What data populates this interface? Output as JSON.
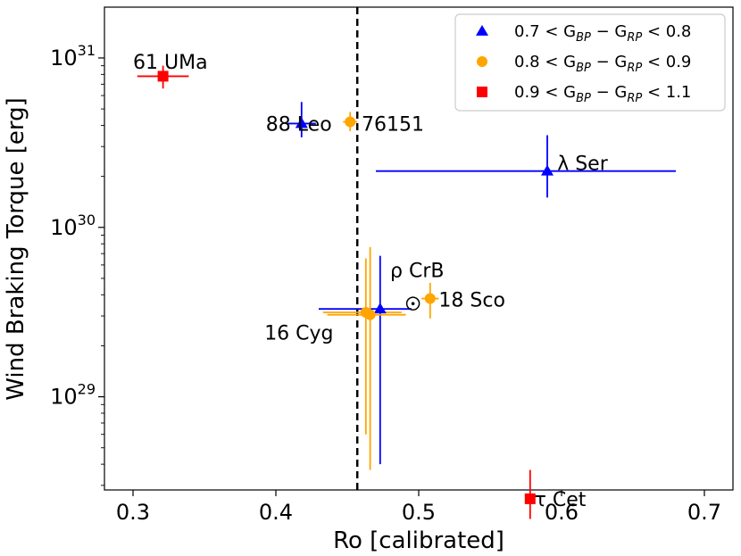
{
  "chart_data": {
    "type": "scatter",
    "xlabel": "Ro [calibrated]",
    "ylabel": "Wind Braking Torque [erg]",
    "xlim": [
      0.28,
      0.72
    ],
    "ylim_log10": [
      28.45,
      31.3
    ],
    "yscale": "log",
    "x_ticks": [
      {
        "value": 0.3,
        "label": "0.3"
      },
      {
        "value": 0.4,
        "label": "0.4"
      },
      {
        "value": 0.5,
        "label": "0.5"
      },
      {
        "value": 0.6,
        "label": "0.6"
      },
      {
        "value": 0.7,
        "label": "0.7"
      }
    ],
    "y_ticks": [
      {
        "exp": 29,
        "base": "10",
        "sup": "29"
      },
      {
        "exp": 30,
        "base": "10",
        "sup": "30"
      },
      {
        "exp": 31,
        "base": "10",
        "sup": "31"
      }
    ],
    "vline": {
      "x": 0.457,
      "style": "dashed",
      "color": "#000000"
    },
    "legend": {
      "position": "top-right",
      "entries": [
        {
          "series": "blue",
          "label": "0.7 < G_BP − G_RP < 0.8",
          "text_main": "0.7 < G",
          "sub1": "BP",
          "mid": " − G",
          "sub2": "RP",
          "tail": " < 0.8"
        },
        {
          "series": "orange",
          "label": "0.8 < G_BP − G_RP < 0.9",
          "text_main": "0.8 < G",
          "sub1": "BP",
          "mid": " − G",
          "sub2": "RP",
          "tail": " < 0.9"
        },
        {
          "series": "red",
          "label": "0.9 < G_BP − G_RP < 1.1",
          "text_main": "0.9 < G",
          "sub1": "BP",
          "mid": " − G",
          "sub2": "RP",
          "tail": " < 1.1"
        }
      ]
    },
    "series": [
      {
        "name": "blue",
        "color": "#0000ff",
        "marker": "triangle",
        "points": [
          {
            "star": "88 Leo",
            "x": 0.418,
            "y": 4.1e+30,
            "xerr": [
              0.01,
              0.01
            ],
            "yerr": [
              7e+29,
              1.4e+30
            ]
          },
          {
            "star": "lambda Ser",
            "x": 0.59,
            "y": 2.15e+30,
            "xerr": [
              0.12,
              0.09
            ],
            "yerr": [
              6.5e+29,
              1.35e+30
            ]
          },
          {
            "star": "rho CrB",
            "x": 0.473,
            "y": 3.3e+29,
            "xerr": [
              0.043,
              0.022
            ],
            "yerr": [
              2.9e+29,
              3.5e+29
            ]
          }
        ]
      },
      {
        "name": "orange",
        "color": "#ffa500",
        "marker": "circle",
        "points": [
          {
            "star": "76151",
            "x": 0.452,
            "y": 4.2e+30,
            "xerr": [
              0.005,
              0.005
            ],
            "yerr": [
              5e+29,
              6e+29
            ]
          },
          {
            "star": "18 Sco",
            "x": 0.508,
            "y": 3.8e+29,
            "xerr": [
              0.006,
              0.006
            ],
            "yerr": [
              9e+28,
              9e+28
            ]
          },
          {
            "star": "16 Cyg A",
            "x": 0.463,
            "y": 3.15e+29,
            "xerr": [
              0.03,
              0.025
            ],
            "yerr": [
              2.55e+29,
              3.4e+29
            ]
          },
          {
            "star": "16 Cyg B",
            "x": 0.466,
            "y": 3.05e+29,
            "xerr": [
              0.03,
              0.025
            ],
            "yerr": [
              2.68e+29,
              4.6e+29
            ]
          }
        ]
      },
      {
        "name": "red",
        "color": "#ff0000",
        "marker": "square",
        "points": [
          {
            "star": "61 UMa",
            "x": 0.321,
            "y": 7.8e+30,
            "xerr": [
              0.018,
              0.018
            ],
            "yerr": [
              1.2e+30,
              1.2e+30
            ]
          },
          {
            "star": "tau Cet",
            "x": 0.578,
            "y": 2.5e+28,
            "xerr": [
              0.0,
              0.0
            ],
            "yerr": [
              6e+27,
              1.2e+28
            ]
          }
        ]
      }
    ],
    "sun": {
      "x": 0.496,
      "y": 3.55e+29,
      "symbol": "sun"
    },
    "annotations": [
      {
        "text": "61 UMa",
        "x": 0.3,
        "y": 9.5e+30
      },
      {
        "text": "88 Leo",
        "x": 0.393,
        "y": 4.1e+30
      },
      {
        "text": "76151",
        "x": 0.46,
        "y": 4.1e+30
      },
      {
        "text": "λ Ser",
        "x": 0.597,
        "y": 2.4e+30
      },
      {
        "text": "ρ CrB",
        "x": 0.48,
        "y": 5.6e+29
      },
      {
        "text": "18 Sco",
        "x": 0.514,
        "y": 3.75e+29
      },
      {
        "text": "16 Cyg",
        "x": 0.392,
        "y": 2.4e+29
      },
      {
        "text": "τ Cet",
        "x": 0.581,
        "y": 2.5e+28
      }
    ]
  }
}
